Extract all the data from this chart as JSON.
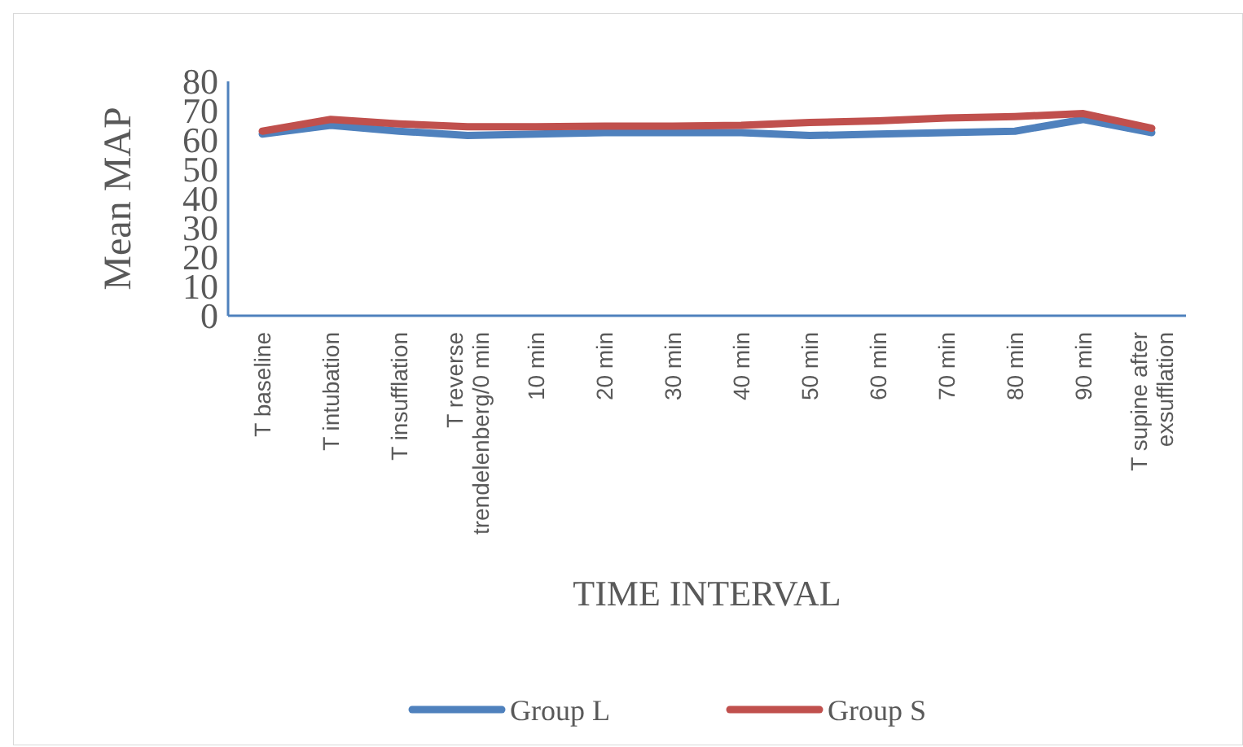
{
  "chart_data": {
    "type": "line",
    "xlabel": "TIME INTERVAL",
    "ylabel": "Mean MAP",
    "categories": [
      "T baseline",
      "T intubation",
      "T insufflation",
      "T reverse trendelenberg/0 min",
      "10 min",
      "20 min",
      "30 min",
      "40 min",
      "50 min",
      "60 min",
      "70 min",
      "80 min",
      "90 min",
      "T supine after exsufflation"
    ],
    "series": [
      {
        "name": "Group L",
        "color": "#4f81bd",
        "values": [
          62,
          65,
          63,
          61.5,
          62,
          62.5,
          62.5,
          62.5,
          61.5,
          62,
          62.5,
          63,
          67,
          62.5
        ]
      },
      {
        "name": "Group S",
        "color": "#c0504d",
        "values": [
          63,
          67,
          65.5,
          64.5,
          64.5,
          64.7,
          64.7,
          65,
          66,
          66.5,
          67.5,
          68,
          69,
          64
        ]
      }
    ],
    "ylim": [
      0,
      80
    ],
    "yticks": [
      0,
      10,
      20,
      30,
      40,
      50,
      60,
      70,
      80
    ],
    "grid": false,
    "legend": "bottom",
    "marker": "none",
    "line_style": "solid"
  }
}
